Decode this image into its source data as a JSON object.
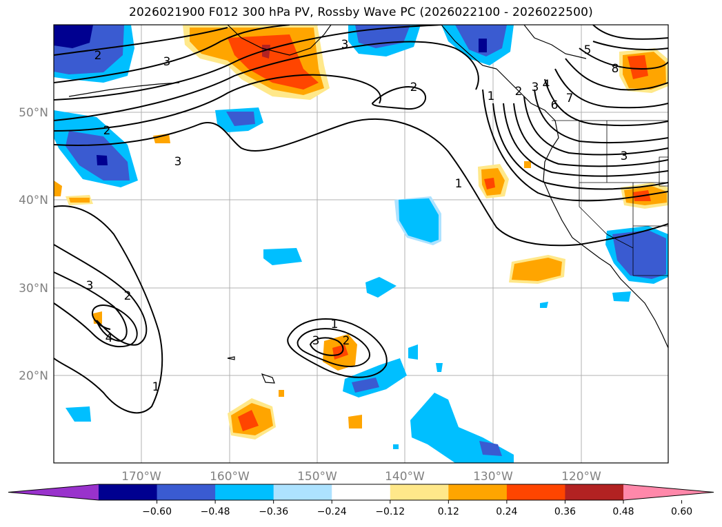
{
  "title": "2026021900 F012 300 hPa PV, Rossby Wave PC (2026022100 - 2026022500)",
  "lon_labels": [
    "170°W",
    "160°W",
    "150°W",
    "140°W",
    "130°W",
    "120°W"
  ],
  "lat_labels": [
    "50°N",
    "40°N",
    "30°N",
    "20°N"
  ],
  "colorbar": {
    "colors": [
      "#9932cc",
      "#000090",
      "#3a5bd1",
      "#00bfff",
      "#ade2ff",
      "#ffffff",
      "#ffe88a",
      "#ffa500",
      "#ff4500",
      "#b22222",
      "#ff88aa"
    ],
    "tick_labels": [
      "−0.60",
      "−0.48",
      "−0.36",
      "−0.24",
      "−0.12",
      "0.12",
      "0.24",
      "0.36",
      "0.48",
      "0.60"
    ]
  },
  "contour_labels": [
    "2",
    "3",
    "3",
    "2",
    "2",
    "1",
    "3",
    "5",
    "8",
    "1",
    "2",
    "3",
    "4",
    "6",
    "7",
    "3",
    "3",
    "2",
    "4",
    "1",
    "1",
    "3",
    "2"
  ]
}
